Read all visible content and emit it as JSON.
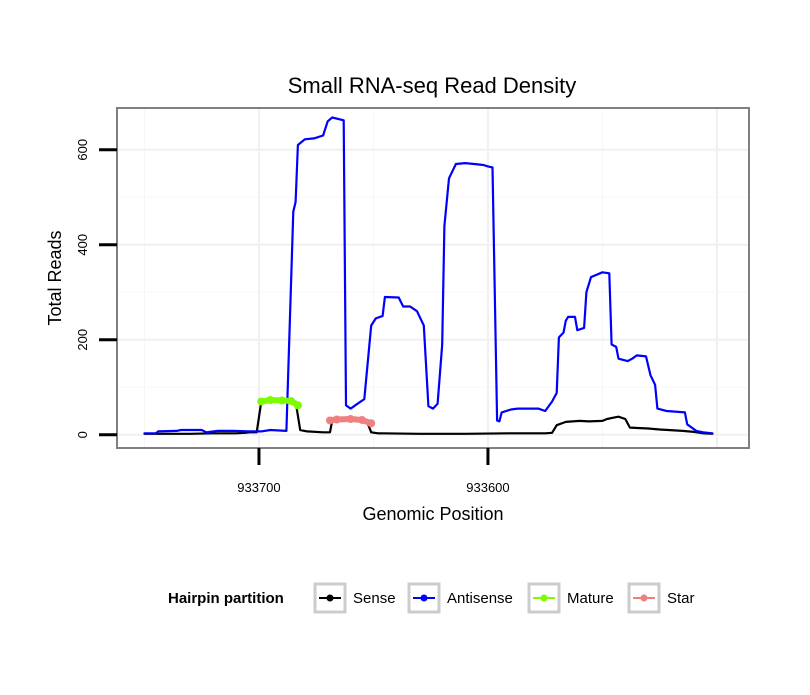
{
  "chart_data": {
    "type": "line",
    "title": "Small RNA-seq Read Density",
    "xlabel": "Genomic Position",
    "ylabel": "Total Reads",
    "x_reversed": true,
    "xlim": [
      933762,
      933486
    ],
    "ylim": [
      -28,
      688
    ],
    "x_ticks": [
      933700,
      933600
    ],
    "x_tick_labels": [
      "933700",
      "933600"
    ],
    "y_ticks": [
      0,
      200,
      400,
      600
    ],
    "y_tick_labels": [
      "0",
      "200",
      "400",
      "600"
    ],
    "grid": true,
    "legend": {
      "title": "Hairpin partition",
      "position": "bottom",
      "entries": [
        {
          "label": "Sense",
          "color": "#000000"
        },
        {
          "label": "Antisense",
          "color": "#0000ff"
        },
        {
          "label": "Mature",
          "color": "#7cfc00"
        },
        {
          "label": "Star",
          "color": "#f08080"
        }
      ]
    },
    "series": [
      {
        "name": "Sense",
        "color": "#000000",
        "points": [
          [
            933750,
            2
          ],
          [
            933740,
            2
          ],
          [
            933730,
            2
          ],
          [
            933720,
            3
          ],
          [
            933710,
            3
          ],
          [
            933706,
            4
          ],
          [
            933704,
            5
          ],
          [
            933701,
            5
          ],
          [
            933699,
            70
          ],
          [
            933690,
            72
          ],
          [
            933684,
            70
          ],
          [
            933682,
            10
          ],
          [
            933679,
            7
          ],
          [
            933672,
            5
          ],
          [
            933669,
            5
          ],
          [
            933668,
            30
          ],
          [
            933660,
            33
          ],
          [
            933653,
            30
          ],
          [
            933651,
            5
          ],
          [
            933648,
            3
          ],
          [
            933630,
            2
          ],
          [
            933610,
            2
          ],
          [
            933590,
            3
          ],
          [
            933575,
            3
          ],
          [
            933572,
            4
          ],
          [
            933570,
            20
          ],
          [
            933566,
            27
          ],
          [
            933560,
            29
          ],
          [
            933556,
            28
          ],
          [
            933550,
            29
          ],
          [
            933548,
            33
          ],
          [
            933545,
            36
          ],
          [
            933543,
            38
          ],
          [
            933540,
            33
          ],
          [
            933538,
            15
          ],
          [
            933530,
            13
          ],
          [
            933525,
            11
          ],
          [
            933515,
            8
          ],
          [
            933510,
            6
          ],
          [
            933506,
            3
          ],
          [
            933502,
            2
          ]
        ]
      },
      {
        "name": "Antisense",
        "color": "#0000ff",
        "points": [
          [
            933750,
            3
          ],
          [
            933745,
            3
          ],
          [
            933744,
            7
          ],
          [
            933736,
            8
          ],
          [
            933734,
            10
          ],
          [
            933725,
            10
          ],
          [
            933723,
            5
          ],
          [
            933718,
            8
          ],
          [
            933711,
            8
          ],
          [
            933705,
            7
          ],
          [
            933699,
            7
          ],
          [
            933695,
            10
          ],
          [
            933688,
            8
          ],
          [
            933685,
            470
          ],
          [
            933684,
            490
          ],
          [
            933683,
            610
          ],
          [
            933680,
            622
          ],
          [
            933676,
            624
          ],
          [
            933672,
            630
          ],
          [
            933670,
            660
          ],
          [
            933668,
            668
          ],
          [
            933663,
            662
          ],
          [
            933662,
            62
          ],
          [
            933660,
            55
          ],
          [
            933657,
            65
          ],
          [
            933654,
            75
          ],
          [
            933651,
            230
          ],
          [
            933649,
            245
          ],
          [
            933646,
            250
          ],
          [
            933645,
            290
          ],
          [
            933639,
            289
          ],
          [
            933637,
            270
          ],
          [
            933634,
            270
          ],
          [
            933631,
            260
          ],
          [
            933628,
            230
          ],
          [
            933626,
            60
          ],
          [
            933624,
            55
          ],
          [
            933622,
            65
          ],
          [
            933620,
            190
          ],
          [
            933619,
            440
          ],
          [
            933617,
            540
          ],
          [
            933614,
            570
          ],
          [
            933610,
            572
          ],
          [
            933606,
            570
          ],
          [
            933602,
            568
          ],
          [
            933600,
            565
          ],
          [
            933598,
            563
          ],
          [
            933596,
            30
          ],
          [
            933595,
            28
          ],
          [
            933594,
            47
          ],
          [
            933590,
            53
          ],
          [
            933587,
            55
          ],
          [
            933578,
            55
          ],
          [
            933575,
            50
          ],
          [
            933572,
            70
          ],
          [
            933570,
            88
          ],
          [
            933569,
            205
          ],
          [
            933567,
            215
          ],
          [
            933566,
            240
          ],
          [
            933565,
            248
          ],
          [
            933562,
            248
          ],
          [
            933561,
            220
          ],
          [
            933558,
            225
          ],
          [
            933557,
            300
          ],
          [
            933555,
            332
          ],
          [
            933550,
            342
          ],
          [
            933547,
            340
          ],
          [
            933546,
            190
          ],
          [
            933544,
            185
          ],
          [
            933543,
            160
          ],
          [
            933539,
            155
          ],
          [
            933537,
            160
          ],
          [
            933535,
            167
          ],
          [
            933531,
            165
          ],
          [
            933529,
            125
          ],
          [
            933527,
            105
          ],
          [
            933526,
            55
          ],
          [
            933522,
            50
          ],
          [
            933514,
            47
          ],
          [
            933513,
            22
          ],
          [
            933509,
            8
          ],
          [
            933506,
            5
          ],
          [
            933502,
            3
          ]
        ]
      },
      {
        "name": "Mature",
        "color": "#7cfc00",
        "points": [
          [
            933699,
            70
          ],
          [
            933695,
            73
          ],
          [
            933690,
            72
          ],
          [
            933686,
            71
          ],
          [
            933683,
            62
          ]
        ]
      },
      {
        "name": "Star",
        "color": "#f08080",
        "points": [
          [
            933669,
            30
          ],
          [
            933666,
            32
          ],
          [
            933660,
            33
          ],
          [
            933655,
            31
          ],
          [
            933651,
            24
          ]
        ]
      }
    ]
  }
}
